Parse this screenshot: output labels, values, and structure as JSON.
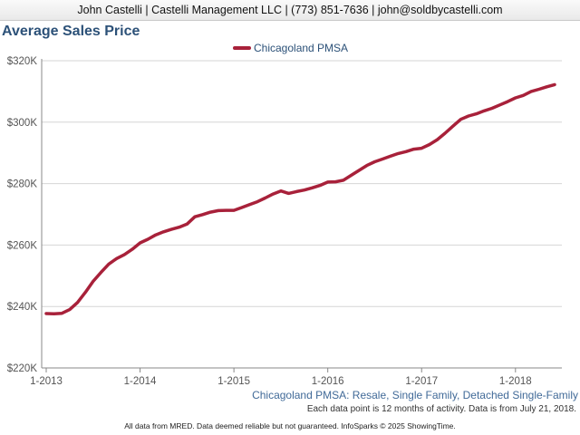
{
  "header": {
    "text": "John Castelli | Castelli Management LLC | (773) 851-7636 | john@soldbycastelli.com"
  },
  "chart_data": {
    "type": "line",
    "title": "Average Sales Price",
    "ylim": [
      220000,
      320000
    ],
    "y_ticks": [
      220000,
      240000,
      260000,
      280000,
      300000,
      320000
    ],
    "y_tick_labels": [
      "$220K",
      "$240K",
      "$260K",
      "$280K",
      "$300K",
      "$320K"
    ],
    "x_tick_labels": [
      "1-2013",
      "1-2014",
      "1-2015",
      "1-2016",
      "1-2017",
      "1-2018"
    ],
    "x_tick_index": [
      0,
      12,
      24,
      36,
      48,
      60
    ],
    "grid": true,
    "legend_position": "top-center",
    "x": [
      "1-2013",
      "2-2013",
      "3-2013",
      "4-2013",
      "5-2013",
      "6-2013",
      "7-2013",
      "8-2013",
      "9-2013",
      "10-2013",
      "11-2013",
      "12-2013",
      "1-2014",
      "2-2014",
      "3-2014",
      "4-2014",
      "5-2014",
      "6-2014",
      "7-2014",
      "8-2014",
      "9-2014",
      "10-2014",
      "11-2014",
      "12-2014",
      "1-2015",
      "2-2015",
      "3-2015",
      "4-2015",
      "5-2015",
      "6-2015",
      "7-2015",
      "8-2015",
      "9-2015",
      "10-2015",
      "11-2015",
      "12-2015",
      "1-2016",
      "2-2016",
      "3-2016",
      "4-2016",
      "5-2016",
      "6-2016",
      "7-2016",
      "8-2016",
      "9-2016",
      "10-2016",
      "11-2016",
      "12-2016",
      "1-2017",
      "2-2017",
      "3-2017",
      "4-2017",
      "5-2017",
      "6-2017",
      "7-2017",
      "8-2017",
      "9-2017",
      "10-2017",
      "11-2017",
      "12-2017",
      "1-2018",
      "2-2018",
      "3-2018",
      "4-2018",
      "5-2018",
      "6-2018"
    ],
    "series": [
      {
        "name": "Chicagoland PMSA",
        "color": "#a8213a",
        "values": [
          237700,
          237600,
          237800,
          239000,
          241300,
          244600,
          248200,
          251100,
          253800,
          255600,
          256900,
          258600,
          260700,
          261900,
          263300,
          264300,
          265100,
          265800,
          266800,
          269200,
          269900,
          270700,
          271200,
          271300,
          271300,
          272200,
          273200,
          274100,
          275300,
          276600,
          277600,
          276800,
          277400,
          277900,
          278600,
          279400,
          280500,
          280600,
          281100,
          282700,
          284300,
          285900,
          287100,
          288000,
          288900,
          289800,
          290400,
          291200,
          291500,
          292700,
          294300,
          296400,
          298700,
          300900,
          302000,
          302700,
          303700,
          304500,
          305600,
          306700,
          307900,
          308700,
          310000,
          310700,
          311500,
          312200
        ]
      }
    ]
  },
  "footnote": {
    "subtitle": "Chicagoland PMSA: Resale, Single Family, Detached Single-Family",
    "note": "Each data point is 12 months of activity. Data is from July 21, 2018.",
    "footer": "All data from MRED. Data deemed reliable but not guaranteed. InfoSparks © 2025 ShowingTime."
  }
}
